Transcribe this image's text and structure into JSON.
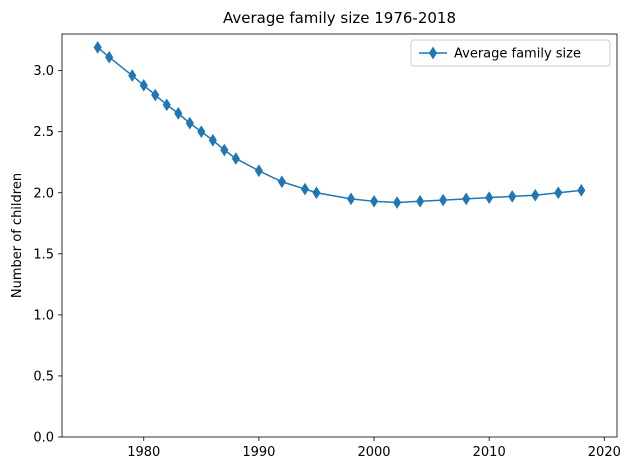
{
  "chart_data": {
    "type": "line",
    "title": "Average family size 1976-2018",
    "xlabel": "",
    "ylabel": "Number of children",
    "xlim": [
      1972.9,
      2021.1
    ],
    "ylim": [
      0.0,
      3.3
    ],
    "x_ticks": [
      1980,
      1990,
      2000,
      2010,
      2020
    ],
    "y_ticks": [
      0.0,
      0.5,
      1.0,
      1.5,
      2.0,
      2.5,
      3.0
    ],
    "x_tick_labels": [
      "1980",
      "1990",
      "2000",
      "2010",
      "2020"
    ],
    "y_tick_labels": [
      "0.0",
      "0.5",
      "1.0",
      "1.5",
      "2.0",
      "2.5",
      "3.0"
    ],
    "grid": false,
    "legend_position": "top-right",
    "series": [
      {
        "name": "Average family size",
        "color": "#1f77b4",
        "marker": "thin-diamond",
        "x": [
          1976,
          1977,
          1979,
          1980,
          1981,
          1982,
          1983,
          1984,
          1985,
          1986,
          1987,
          1988,
          1990,
          1992,
          1994,
          1995,
          1998,
          2000,
          2002,
          2004,
          2006,
          2008,
          2010,
          2012,
          2014,
          2016,
          2018
        ],
        "y": [
          3.19,
          3.11,
          2.96,
          2.88,
          2.8,
          2.72,
          2.65,
          2.57,
          2.5,
          2.43,
          2.35,
          2.28,
          2.18,
          2.09,
          2.03,
          2.0,
          1.95,
          1.93,
          1.92,
          1.93,
          1.94,
          1.95,
          1.96,
          1.97,
          1.98,
          2.0,
          2.02
        ]
      }
    ]
  }
}
